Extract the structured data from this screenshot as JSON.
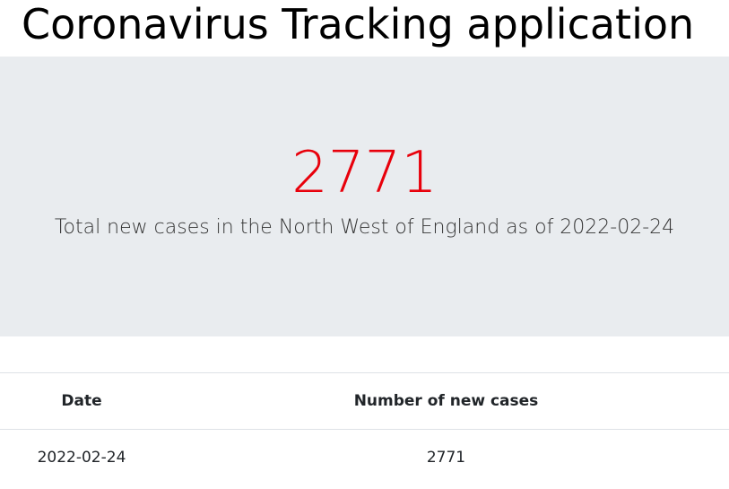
{
  "header": {
    "title": "Coronavirus Tracking application"
  },
  "jumbotron": {
    "count": "2771",
    "caption": "Total new cases in the North West of England as of 2022-02-24"
  },
  "table": {
    "columns": [
      "Date",
      "Number of new cases"
    ],
    "rows": [
      [
        "2022-02-24",
        "2771"
      ]
    ]
  }
}
